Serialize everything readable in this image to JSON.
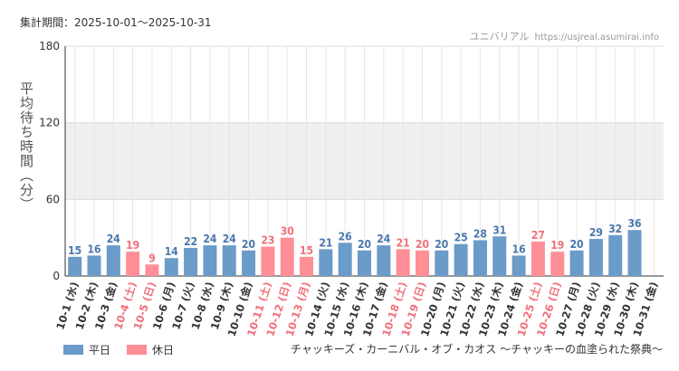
{
  "header": {
    "period": "集計期間：2025-10-01～2025-10-31",
    "source_name": "ユニバリアル",
    "source_url": "https://usjreal.asumirai.info"
  },
  "footer": {
    "caption": "チャッキーズ・カーニバル・オブ・カオス ～チャッキーの血塗られた祭典～"
  },
  "colors": {
    "weekday": "#6b9bc8",
    "holiday": "#ff8f97",
    "weekday_text": "#4a78ac",
    "holiday_text": "#f0707a",
    "band": "#efefef"
  },
  "chart_data": {
    "type": "bar",
    "ylabel": "平均待ち時間（分）",
    "ylim": [
      0,
      180
    ],
    "yticks": [
      0,
      60,
      120,
      180
    ],
    "shaded_band": [
      60,
      120
    ],
    "legend": [
      "平日",
      "休日"
    ],
    "categories": [
      "10-1 (水)",
      "10-2 (木)",
      "10-3 (金)",
      "10-4 (土)",
      "10-5 (日)",
      "10-6 (月)",
      "10-7 (火)",
      "10-8 (水)",
      "10-9 (木)",
      "10-10 (金)",
      "10-11 (土)",
      "10-12 (日)",
      "10-13 (月)",
      "10-14 (火)",
      "10-15 (水)",
      "10-16 (木)",
      "10-17 (金)",
      "10-18 (土)",
      "10-19 (日)",
      "10-20 (月)",
      "10-21 (火)",
      "10-22 (水)",
      "10-23 (木)",
      "10-24 (金)",
      "10-25 (土)",
      "10-26 (日)",
      "10-27 (月)",
      "10-28 (火)",
      "10-29 (水)",
      "10-30 (木)",
      "10-31 (金)"
    ],
    "values": [
      15,
      16,
      24,
      19,
      9,
      14,
      22,
      24,
      24,
      20,
      23,
      30,
      15,
      21,
      26,
      20,
      24,
      21,
      20,
      20,
      25,
      28,
      31,
      16,
      27,
      19,
      20,
      29,
      32,
      36,
      null
    ],
    "day_type": [
      "平日",
      "平日",
      "平日",
      "休日",
      "休日",
      "平日",
      "平日",
      "平日",
      "平日",
      "平日",
      "休日",
      "休日",
      "休日",
      "平日",
      "平日",
      "平日",
      "平日",
      "休日",
      "休日",
      "平日",
      "平日",
      "平日",
      "平日",
      "平日",
      "休日",
      "休日",
      "平日",
      "平日",
      "平日",
      "平日",
      "平日"
    ]
  }
}
